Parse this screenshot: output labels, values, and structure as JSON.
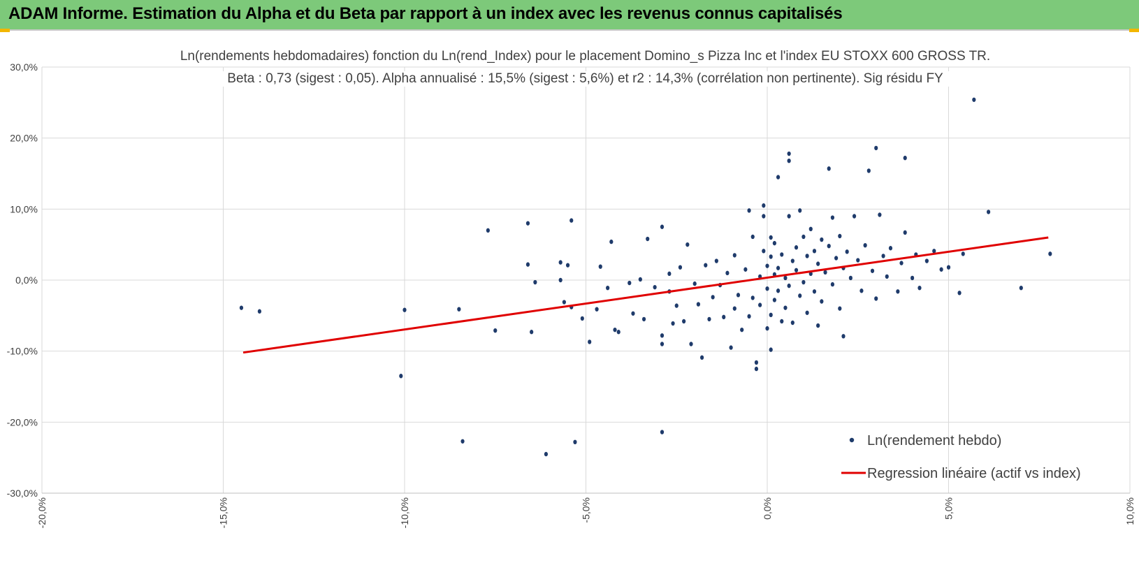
{
  "banner": {
    "title": "ADAM Informe. Estimation du Alpha et du Beta par rapport à un index avec les revenus connus capitalisés"
  },
  "colors": {
    "banner": "#7dc97a",
    "points": "#1f3b6b",
    "regression": "#e00000",
    "grid": "#d9d9d9"
  },
  "chart_data": {
    "type": "scatter",
    "title": "Ln(rendements hebdomadaires) fonction du Ln(rend_Index) pour le placement Domino_s Pizza Inc et l'index EU STOXX 600 GROSS TR.",
    "subtitle": "Beta : 0,73 (sigest : 0,05).  Alpha annualisé : 15,5% (sigest : 5,6%) et r2 : 14,3% (corrélation non pertinente). Sig résidu FY",
    "xlabel": "",
    "ylabel": "",
    "xlim": [
      -0.2,
      0.1
    ],
    "ylim": [
      -0.3,
      0.3
    ],
    "x_ticks": [
      -0.2,
      -0.15,
      -0.1,
      -0.05,
      0.0,
      0.05,
      0.1
    ],
    "y_ticks": [
      0.3,
      0.2,
      0.1,
      0.0,
      -0.1,
      -0.2,
      -0.3
    ],
    "x_tick_labels": [
      "-20,0%",
      "-15,0%",
      "-10,0%",
      "-5,0%",
      "0,0%",
      "5,0%",
      "10,0%"
    ],
    "y_tick_labels": [
      "30,0%",
      "20,0%",
      "10,0%",
      "0,0%",
      "-10,0%",
      "-20,0%",
      "-30,0%"
    ],
    "grid": true,
    "legend_position": "bottom-right",
    "series": [
      {
        "name": "Ln(rendement hebdo)",
        "type": "scatter",
        "points": [
          [
            -0.145,
            -0.039
          ],
          [
            -0.14,
            -0.044
          ],
          [
            -0.1,
            -0.042
          ],
          [
            -0.101,
            -0.135
          ],
          [
            -0.085,
            -0.041
          ],
          [
            -0.084,
            -0.227
          ],
          [
            -0.077,
            0.07
          ],
          [
            -0.075,
            -0.071
          ],
          [
            -0.066,
            0.08
          ],
          [
            -0.066,
            0.022
          ],
          [
            -0.065,
            -0.073
          ],
          [
            -0.064,
            -0.003
          ],
          [
            -0.061,
            -0.245
          ],
          [
            -0.057,
            0.025
          ],
          [
            -0.057,
            0.0
          ],
          [
            -0.056,
            -0.031
          ],
          [
            -0.055,
            0.021
          ],
          [
            -0.054,
            0.084
          ],
          [
            -0.054,
            -0.038
          ],
          [
            -0.053,
            -0.228
          ],
          [
            -0.051,
            -0.054
          ],
          [
            -0.049,
            -0.087
          ],
          [
            -0.047,
            -0.041
          ],
          [
            -0.046,
            0.019
          ],
          [
            -0.044,
            -0.011
          ],
          [
            -0.043,
            0.054
          ],
          [
            -0.042,
            -0.07
          ],
          [
            -0.041,
            -0.073
          ],
          [
            -0.038,
            -0.004
          ],
          [
            -0.037,
            -0.047
          ],
          [
            -0.035,
            0.001
          ],
          [
            -0.034,
            -0.055
          ],
          [
            -0.033,
            0.058
          ],
          [
            -0.031,
            -0.01
          ],
          [
            -0.029,
            -0.214
          ],
          [
            -0.029,
            -0.09
          ],
          [
            -0.029,
            -0.078
          ],
          [
            -0.029,
            0.075
          ],
          [
            -0.027,
            0.009
          ],
          [
            -0.027,
            -0.016
          ],
          [
            -0.026,
            -0.061
          ],
          [
            -0.025,
            -0.036
          ],
          [
            -0.024,
            0.018
          ],
          [
            -0.023,
            -0.058
          ],
          [
            -0.022,
            0.05
          ],
          [
            -0.021,
            -0.09
          ],
          [
            -0.02,
            -0.005
          ],
          [
            -0.019,
            -0.034
          ],
          [
            -0.018,
            -0.109
          ],
          [
            -0.017,
            0.021
          ],
          [
            -0.016,
            -0.055
          ],
          [
            -0.015,
            -0.024
          ],
          [
            -0.014,
            0.027
          ],
          [
            -0.013,
            -0.007
          ],
          [
            -0.012,
            -0.052
          ],
          [
            -0.011,
            0.01
          ],
          [
            -0.01,
            -0.095
          ],
          [
            -0.009,
            -0.04
          ],
          [
            -0.009,
            0.035
          ],
          [
            -0.008,
            -0.021
          ],
          [
            -0.007,
            -0.07
          ],
          [
            -0.006,
            0.015
          ],
          [
            -0.005,
            0.098
          ],
          [
            -0.005,
            -0.051
          ],
          [
            -0.004,
            -0.025
          ],
          [
            -0.004,
            0.061
          ],
          [
            -0.003,
            -0.125
          ],
          [
            -0.003,
            -0.116
          ],
          [
            -0.002,
            0.005
          ],
          [
            -0.002,
            -0.035
          ],
          [
            -0.001,
            0.09
          ],
          [
            -0.001,
            0.041
          ],
          [
            0.0,
            -0.012
          ],
          [
            0.0,
            0.02
          ],
          [
            0.0,
            -0.068
          ],
          [
            0.001,
            0.033
          ],
          [
            -0.001,
            0.105
          ],
          [
            0.001,
            -0.049
          ],
          [
            0.001,
            0.06
          ],
          [
            0.001,
            -0.098
          ],
          [
            0.002,
            0.008
          ],
          [
            0.002,
            -0.028
          ],
          [
            0.002,
            0.052
          ],
          [
            0.003,
            0.145
          ],
          [
            0.003,
            -0.015
          ],
          [
            0.003,
            0.017
          ],
          [
            0.004,
            -0.058
          ],
          [
            0.004,
            0.036
          ],
          [
            0.005,
            0.003
          ],
          [
            0.005,
            -0.039
          ],
          [
            0.006,
            0.09
          ],
          [
            0.006,
            0.168
          ],
          [
            0.006,
            0.178
          ],
          [
            0.006,
            -0.008
          ],
          [
            0.007,
            0.027
          ],
          [
            0.007,
            -0.06
          ],
          [
            0.008,
            0.046
          ],
          [
            0.008,
            0.014
          ],
          [
            0.009,
            -0.022
          ],
          [
            0.009,
            0.098
          ],
          [
            0.01,
            0.061
          ],
          [
            0.01,
            -0.003
          ],
          [
            0.011,
            0.034
          ],
          [
            0.011,
            -0.046
          ],
          [
            0.012,
            0.009
          ],
          [
            0.012,
            0.072
          ],
          [
            0.013,
            -0.016
          ],
          [
            0.013,
            0.041
          ],
          [
            0.014,
            -0.064
          ],
          [
            0.014,
            0.023
          ],
          [
            0.015,
            0.057
          ],
          [
            0.015,
            -0.03
          ],
          [
            0.016,
            0.011
          ],
          [
            0.017,
            0.157
          ],
          [
            0.017,
            0.048
          ],
          [
            0.018,
            -0.006
          ],
          [
            0.018,
            0.088
          ],
          [
            0.019,
            0.031
          ],
          [
            0.02,
            -0.04
          ],
          [
            0.02,
            0.062
          ],
          [
            0.021,
            0.017
          ],
          [
            0.021,
            -0.079
          ],
          [
            0.022,
            0.04
          ],
          [
            0.023,
            0.003
          ],
          [
            0.024,
            0.09
          ],
          [
            0.025,
            0.028
          ],
          [
            0.026,
            -0.015
          ],
          [
            0.027,
            0.049
          ],
          [
            0.028,
            0.154
          ],
          [
            0.029,
            0.013
          ],
          [
            0.03,
            -0.026
          ],
          [
            0.03,
            0.186
          ],
          [
            0.031,
            0.092
          ],
          [
            0.032,
            0.034
          ],
          [
            0.033,
            0.005
          ],
          [
            0.034,
            0.045
          ],
          [
            0.036,
            -0.016
          ],
          [
            0.037,
            0.024
          ],
          [
            0.038,
            0.067
          ],
          [
            0.038,
            0.172
          ],
          [
            0.04,
            0.003
          ],
          [
            0.041,
            0.036
          ],
          [
            0.042,
            -0.011
          ],
          [
            0.044,
            0.027
          ],
          [
            0.046,
            0.041
          ],
          [
            0.048,
            0.015
          ],
          [
            0.05,
            0.018
          ],
          [
            0.053,
            -0.018
          ],
          [
            0.054,
            0.037
          ],
          [
            0.057,
            0.254
          ],
          [
            0.061,
            0.096
          ],
          [
            0.07,
            -0.011
          ],
          [
            0.078,
            0.037
          ]
        ]
      },
      {
        "name": "Regression linéaire (actif vs index)",
        "type": "line",
        "points": [
          [
            -0.1445,
            -0.102
          ],
          [
            0.0775,
            0.06
          ]
        ]
      }
    ]
  }
}
